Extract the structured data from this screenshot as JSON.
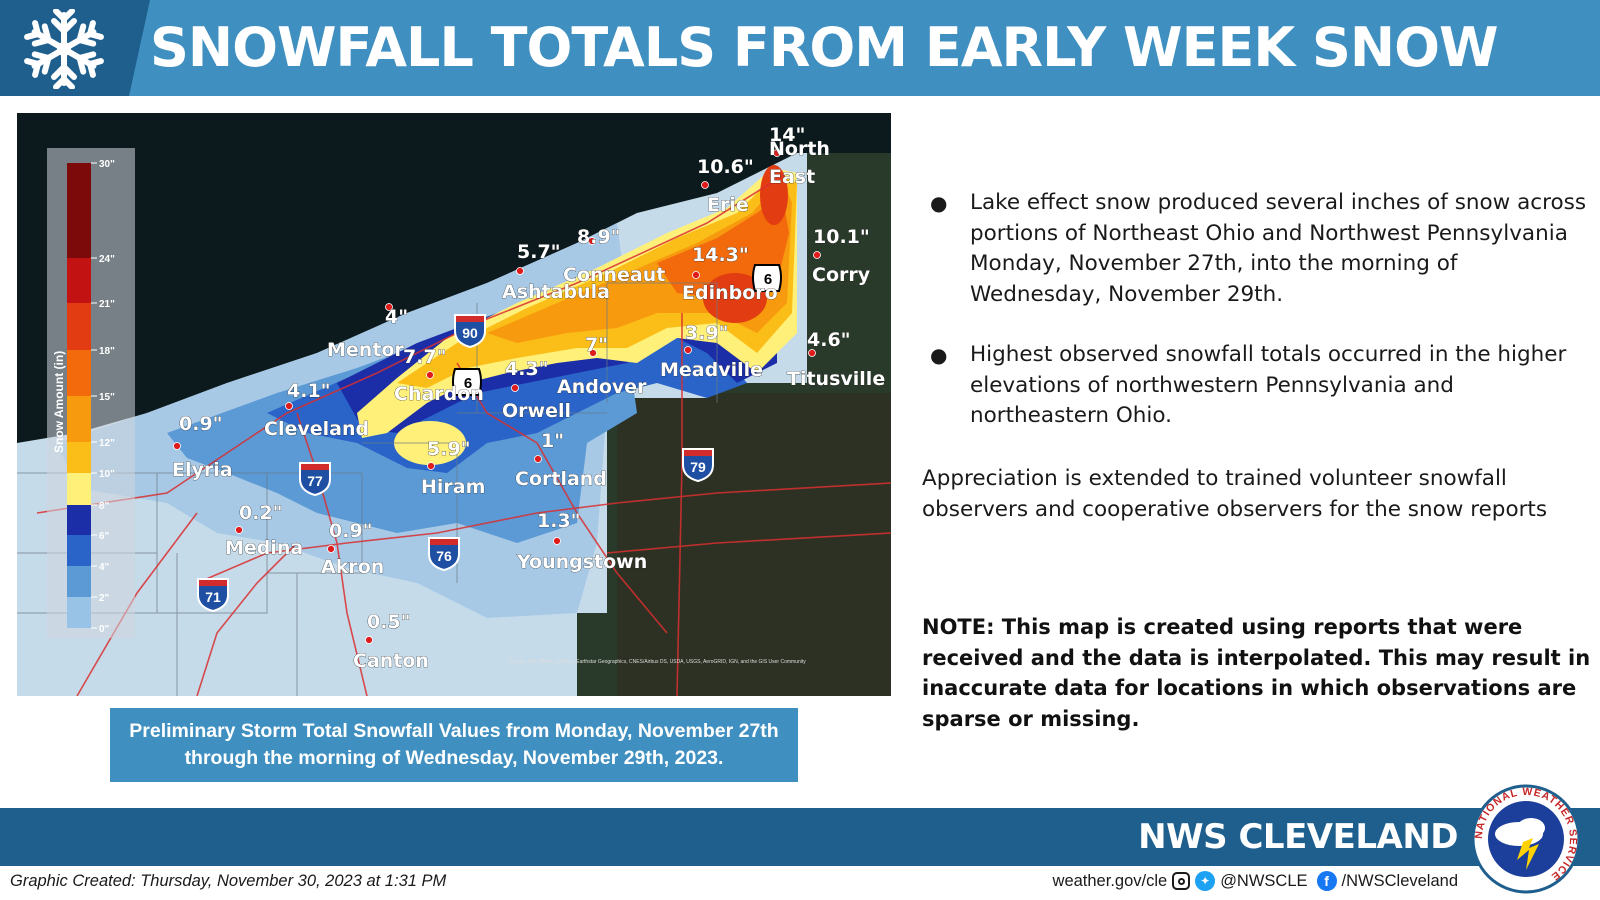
{
  "header": {
    "title": "SNOWFALL TOTALS FROM EARLY WEEK SNOW",
    "icon": "snowflake-icon"
  },
  "map": {
    "legend": {
      "title": "Snow Amount (in)",
      "ticks": [
        "30\"",
        "24\"",
        "21\"",
        "18\"",
        "15\"",
        "12\"",
        "10\"",
        "8\"",
        "6\"",
        "4\"",
        "2\"",
        "0\""
      ],
      "colors": [
        "#7c0a0a",
        "#c21212",
        "#e23c12",
        "#f26a0c",
        "#f79a0e",
        "#fbbe18",
        "#fff07a",
        "#1b2ea8",
        "#2a64c8",
        "#5c9ad6",
        "#98c2e6",
        "#bcd8ec"
      ]
    },
    "cities": [
      {
        "name": "North East",
        "name_lines": [
          "North",
          "East"
        ],
        "value": "14\""
      },
      {
        "name": "Erie",
        "value": "10.6\""
      },
      {
        "name": "Corry",
        "value": "10.1\""
      },
      {
        "name": "Edinboro",
        "value": "14.3\""
      },
      {
        "name": "Conneaut",
        "value": "8.9\""
      },
      {
        "name": "Ashtabula",
        "value": "5.7\""
      },
      {
        "name": "Mentor",
        "value": "4\""
      },
      {
        "name": "Chardon",
        "value": "7.7\""
      },
      {
        "name": "Orwell",
        "value": "4.3\""
      },
      {
        "name": "Andover",
        "value": "7\""
      },
      {
        "name": "Meadville",
        "value": "3.9\""
      },
      {
        "name": "Titusville",
        "value": "4.6\""
      },
      {
        "name": "Cleveland",
        "value": "4.1\""
      },
      {
        "name": "Elyria",
        "value": "0.9\""
      },
      {
        "name": "Hiram",
        "value": "5.9\""
      },
      {
        "name": "Cortland",
        "value": "1\""
      },
      {
        "name": "Medina",
        "value": "0.2\""
      },
      {
        "name": "Akron",
        "value": "0.9\""
      },
      {
        "name": "Youngstown",
        "value": "1.3\""
      },
      {
        "name": "Canton",
        "value": "0.5\""
      }
    ],
    "highway_shields": [
      "90",
      "6",
      "6",
      "79",
      "77",
      "76",
      "71"
    ],
    "attribution": "Source: Esri, Maxar, GeoEye, Earthstar Geographics, CNES/Airbus DS, USDA, USGS, AeroGRID, IGN, and the GIS User Community"
  },
  "caption": "Preliminary Storm Total Snowfall Values from Monday, November 27th through the morning of Wednesday, November 29th, 2023.",
  "bullets": [
    "Lake effect snow produced several inches of snow across portions of Northeast Ohio and Northwest Pennsylvania Monday, November 27th, into the morning of Wednesday, November 29th.",
    "Highest observed snowfall totals occurred in the higher elevations of northwestern Pennsylvania and northeastern Ohio."
  ],
  "appreciation": "Appreciation is extended to trained volunteer snowfall observers and cooperative observers for the snow reports",
  "note": "NOTE: This map is created using reports that were received and the data is interpolated. This may result in inaccurate data for locations in which observations are sparse or missing.",
  "footer": {
    "org": "NWS CLEVELAND",
    "created": "Graphic Created: Thursday, November 30, 2023 at 1:31 PM",
    "website": "weather.gov/cle",
    "handle": "@NWSCLE",
    "facebook": "/NWSCleveland",
    "logo_text": "NATIONAL WEATHER SERVICE"
  },
  "colors": {
    "header_bg": "#3f8fc0",
    "header_icon_bg": "#1f5f8e",
    "footer_bg": "#1f5f8e",
    "caption_bg": "#3f8fc0"
  }
}
